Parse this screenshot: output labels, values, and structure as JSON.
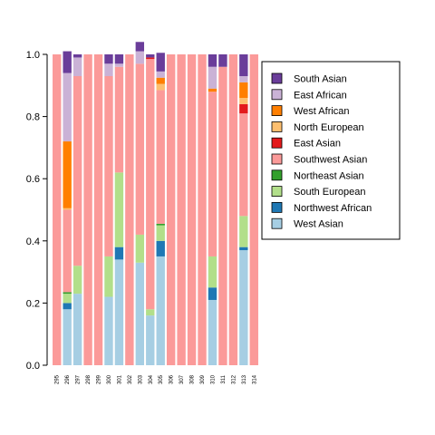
{
  "chart_data": {
    "type": "bar",
    "stacked": true,
    "normalized": true,
    "title": "",
    "xlabel": "",
    "ylabel": "",
    "ylim": [
      0,
      1
    ],
    "yticks": [
      "0.0",
      "0.2",
      "0.4",
      "0.6",
      "0.8",
      "1.0"
    ],
    "ytick_values": [
      0,
      0.2,
      0.4,
      0.6,
      0.8,
      1.0
    ],
    "legend_position": "right",
    "categories": [
      "295",
      "296",
      "297",
      "298",
      "299",
      "300",
      "301",
      "302",
      "303",
      "304",
      "305",
      "306",
      "307",
      "308",
      "309",
      "310",
      "311",
      "312",
      "313",
      "314"
    ],
    "series": [
      {
        "name": "West Asian",
        "color": "#a6cee3",
        "values": [
          0,
          0.18,
          0.23,
          0,
          0,
          0.22,
          0.34,
          0,
          0.33,
          0.16,
          0.35,
          0,
          0,
          0,
          0,
          0.21,
          0,
          0,
          0.37,
          0
        ]
      },
      {
        "name": "Northwest African",
        "color": "#1f78b4",
        "values": [
          0,
          0.02,
          0,
          0,
          0,
          0,
          0.04,
          0,
          0,
          0,
          0.05,
          0,
          0,
          0,
          0,
          0.04,
          0,
          0,
          0.01,
          0
        ]
      },
      {
        "name": "South European",
        "color": "#b2df8a",
        "values": [
          0,
          0.03,
          0.09,
          0,
          0,
          0.13,
          0.24,
          0,
          0.09,
          0.02,
          0.05,
          0,
          0,
          0,
          0,
          0.1,
          0,
          0,
          0.1,
          0
        ]
      },
      {
        "name": "Northeast Asian",
        "color": "#33a02c",
        "values": [
          0,
          0.005,
          0,
          0,
          0,
          0,
          0,
          0,
          0,
          0,
          0.005,
          0,
          0,
          0,
          0,
          0,
          0,
          0,
          0,
          0
        ]
      },
      {
        "name": "Southwest Asian",
        "color": "#fb9a99",
        "values": [
          1,
          0.265,
          0.61,
          1,
          1,
          0.58,
          0.34,
          1,
          0.55,
          0.805,
          0.43,
          1,
          1,
          1,
          1,
          0.53,
          0.96,
          1,
          0.33,
          1
        ]
      },
      {
        "name": "East Asian",
        "color": "#e31a1c",
        "values": [
          0,
          0,
          0,
          0,
          0,
          0,
          0,
          0,
          0,
          0.005,
          0,
          0,
          0,
          0,
          0,
          0,
          0,
          0,
          0.03,
          0
        ]
      },
      {
        "name": "North European",
        "color": "#fdbf6f",
        "values": [
          0,
          0.005,
          0,
          0,
          0,
          0,
          0,
          0,
          0,
          0,
          0.02,
          0,
          0,
          0,
          0,
          0,
          0,
          0,
          0.02,
          0
        ]
      },
      {
        "name": "West African",
        "color": "#ff7f00",
        "values": [
          0,
          0.215,
          0,
          0,
          0,
          0,
          0,
          0,
          0,
          0,
          0.02,
          0,
          0,
          0,
          0,
          0.01,
          0,
          0,
          0.05,
          0
        ]
      },
      {
        "name": "East African",
        "color": "#cab2d6",
        "values": [
          0,
          0.22,
          0.06,
          0,
          0,
          0.04,
          0.01,
          0,
          0.04,
          0,
          0.02,
          0,
          0,
          0,
          0,
          0.07,
          0,
          0,
          0.02,
          0
        ]
      },
      {
        "name": "South Asian",
        "color": "#6a3d9a",
        "values": [
          0,
          0.07,
          0.01,
          0,
          0,
          0.03,
          0.03,
          0,
          0.03,
          0.01,
          0.06,
          0,
          0,
          0,
          0,
          0.04,
          0.04,
          0,
          0.07,
          0
        ]
      }
    ]
  }
}
